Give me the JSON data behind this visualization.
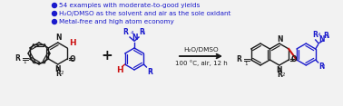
{
  "bg_color": "#f2f2f2",
  "black": "#1a1a1a",
  "blue": "#1a1acc",
  "red": "#cc1111",
  "bullet_color": "#1a1acc",
  "bullet1": "Metal-free and high atom economy",
  "bullet2": "H₂O/DMSO as the solvent and air as the sole oxidant",
  "bullet3": "54 examples with moderate-to-good yields",
  "cond1": "H₂O/DMSO",
  "cond2": "100 °C, air, 12 h"
}
